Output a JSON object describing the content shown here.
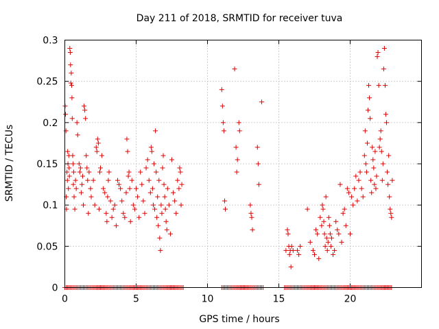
{
  "chart_data": {
    "type": "scatter",
    "title": "Day 211 of 2018, SRMTID for receiver tuva",
    "xlabel": "GPS time / hours",
    "ylabel": "SRMTID / TECUs",
    "xlim": [
      0,
      25
    ],
    "ylim": [
      0,
      0.3
    ],
    "xticks": [
      0,
      5,
      10,
      15,
      20
    ],
    "yticks": [
      0,
      0.05,
      0.1,
      0.15,
      0.2,
      0.25,
      0.3
    ],
    "grid": true,
    "legend": "none",
    "marker": "plus",
    "color": "#dd0000",
    "series": [
      {
        "values": [
          [
            0.02,
            0.22
          ],
          [
            0.05,
            0.21
          ],
          [
            0.08,
            0.19
          ],
          [
            0.1,
            0.11
          ],
          [
            0.12,
            0.095
          ],
          [
            0.15,
            0.14
          ],
          [
            0.18,
            0.13
          ],
          [
            0.2,
            0.165
          ],
          [
            0.22,
            0.15
          ],
          [
            0.25,
            0.12
          ],
          [
            0.28,
            0.16
          ],
          [
            0.3,
            0.145
          ],
          [
            0.32,
            0.135
          ],
          [
            0.35,
            0.29
          ],
          [
            0.38,
            0.285
          ],
          [
            0.4,
            0.27
          ],
          [
            0.42,
            0.248
          ],
          [
            0.45,
            0.26
          ],
          [
            0.48,
            0.245
          ],
          [
            0.5,
            0.23
          ],
          [
            0.52,
            0.205
          ],
          [
            0.55,
            0.16
          ],
          [
            0.58,
            0.15
          ],
          [
            0.6,
            0.125
          ],
          [
            0.62,
            0.14
          ],
          [
            0.65,
            0.11
          ],
          [
            0.7,
            0.095
          ],
          [
            0.75,
            0.13
          ],
          [
            0.8,
            0.12
          ],
          [
            0.85,
            0.2
          ],
          [
            0.9,
            0.185
          ],
          [
            1.0,
            0.15
          ],
          [
            1.05,
            0.14
          ],
          [
            1.1,
            0.145
          ],
          [
            1.15,
            0.115
          ],
          [
            1.2,
            0.125
          ],
          [
            1.25,
            0.135
          ],
          [
            1.3,
            0.1
          ],
          [
            1.35,
            0.22
          ],
          [
            1.4,
            0.215
          ],
          [
            1.45,
            0.205
          ],
          [
            1.5,
            0.16
          ],
          [
            1.55,
            0.145
          ],
          [
            1.6,
            0.13
          ],
          [
            1.65,
            0.09
          ],
          [
            1.7,
            0.14
          ],
          [
            1.8,
            0.12
          ],
          [
            1.85,
            0.11
          ],
          [
            2.0,
            0.13
          ],
          [
            2.1,
            0.1
          ],
          [
            2.2,
            0.17
          ],
          [
            2.25,
            0.165
          ],
          [
            2.3,
            0.18
          ],
          [
            2.35,
            0.175
          ],
          [
            2.4,
            0.095
          ],
          [
            2.45,
            0.14
          ],
          [
            2.5,
            0.145
          ],
          [
            2.6,
            0.16
          ],
          [
            2.7,
            0.12
          ],
          [
            2.8,
            0.115
          ],
          [
            2.9,
            0.09
          ],
          [
            2.95,
            0.08
          ],
          [
            3.0,
            0.11
          ],
          [
            3.05,
            0.13
          ],
          [
            3.1,
            0.14
          ],
          [
            3.2,
            0.105
          ],
          [
            3.3,
            0.085
          ],
          [
            3.4,
            0.095
          ],
          [
            3.5,
            0.1
          ],
          [
            3.6,
            0.075
          ],
          [
            3.7,
            0.13
          ],
          [
            3.8,
            0.125
          ],
          [
            3.9,
            0.12
          ],
          [
            4.0,
            0.105
          ],
          [
            4.1,
            0.09
          ],
          [
            4.2,
            0.085
          ],
          [
            4.3,
            0.115
          ],
          [
            4.35,
            0.18
          ],
          [
            4.4,
            0.165
          ],
          [
            4.45,
            0.135
          ],
          [
            4.5,
            0.14
          ],
          [
            4.55,
            0.12
          ],
          [
            4.6,
            0.08
          ],
          [
            4.7,
            0.13
          ],
          [
            4.8,
            0.1
          ],
          [
            4.9,
            0.095
          ],
          [
            5.0,
            0.12
          ],
          [
            5.1,
            0.11
          ],
          [
            5.2,
            0.085
          ],
          [
            5.3,
            0.14
          ],
          [
            5.4,
            0.125
          ],
          [
            5.5,
            0.105
          ],
          [
            5.6,
            0.09
          ],
          [
            5.7,
            0.145
          ],
          [
            5.8,
            0.155
          ],
          [
            5.9,
            0.13
          ],
          [
            6.0,
            0.115
          ],
          [
            6.05,
            0.17
          ],
          [
            6.1,
            0.165
          ],
          [
            6.15,
            0.12
          ],
          [
            6.2,
            0.1
          ],
          [
            6.25,
            0.15
          ],
          [
            6.3,
            0.095
          ],
          [
            6.35,
            0.19
          ],
          [
            6.4,
            0.14
          ],
          [
            6.45,
            0.085
          ],
          [
            6.5,
            0.11
          ],
          [
            6.55,
            0.075
          ],
          [
            6.6,
            0.13
          ],
          [
            6.65,
            0.06
          ],
          [
            6.7,
            0.045
          ],
          [
            6.75,
            0.1
          ],
          [
            6.8,
            0.09
          ],
          [
            6.85,
            0.145
          ],
          [
            6.9,
            0.16
          ],
          [
            6.95,
            0.125
          ],
          [
            7.0,
            0.11
          ],
          [
            7.05,
            0.095
          ],
          [
            7.1,
            0.08
          ],
          [
            7.15,
            0.07
          ],
          [
            7.2,
            0.12
          ],
          [
            7.3,
            0.1
          ],
          [
            7.4,
            0.065
          ],
          [
            7.5,
            0.155
          ],
          [
            7.6,
            0.115
          ],
          [
            7.7,
            0.105
          ],
          [
            7.8,
            0.09
          ],
          [
            7.9,
            0.13
          ],
          [
            8.0,
            0.12
          ],
          [
            8.05,
            0.145
          ],
          [
            8.1,
            0.14
          ],
          [
            8.15,
            0.1
          ],
          [
            8.2,
            0.125
          ],
          [
            11.0,
            0.24
          ],
          [
            11.05,
            0.22
          ],
          [
            11.1,
            0.2
          ],
          [
            11.15,
            0.19
          ],
          [
            11.2,
            0.105
          ],
          [
            11.25,
            0.095
          ],
          [
            11.9,
            0.265
          ],
          [
            12.0,
            0.17
          ],
          [
            12.05,
            0.14
          ],
          [
            12.1,
            0.155
          ],
          [
            12.2,
            0.2
          ],
          [
            12.25,
            0.19
          ],
          [
            13.0,
            0.1
          ],
          [
            13.05,
            0.09
          ],
          [
            13.1,
            0.085
          ],
          [
            13.15,
            0.07
          ],
          [
            13.5,
            0.17
          ],
          [
            13.55,
            0.15
          ],
          [
            13.6,
            0.125
          ],
          [
            13.8,
            0.225
          ],
          [
            15.5,
            0.045
          ],
          [
            15.6,
            0.07
          ],
          [
            15.65,
            0.065
          ],
          [
            15.7,
            0.05
          ],
          [
            15.75,
            0.04
          ],
          [
            15.8,
            0.045
          ],
          [
            15.85,
            0.025
          ],
          [
            15.9,
            0.05
          ],
          [
            16.0,
            0.045
          ],
          [
            16.3,
            0.045
          ],
          [
            16.4,
            0.04
          ],
          [
            16.5,
            0.05
          ],
          [
            17.0,
            0.095
          ],
          [
            17.2,
            0.055
          ],
          [
            17.4,
            0.045
          ],
          [
            17.5,
            0.04
          ],
          [
            17.6,
            0.07
          ],
          [
            17.7,
            0.065
          ],
          [
            17.8,
            0.035
          ],
          [
            17.9,
            0.085
          ],
          [
            18.0,
            0.075
          ],
          [
            18.05,
            0.1
          ],
          [
            18.1,
            0.095
          ],
          [
            18.15,
            0.08
          ],
          [
            18.2,
            0.065
          ],
          [
            18.25,
            0.05
          ],
          [
            18.3,
            0.11
          ],
          [
            18.35,
            0.06
          ],
          [
            18.4,
            0.045
          ],
          [
            18.45,
            0.055
          ],
          [
            18.5,
            0.085
          ],
          [
            18.55,
            0.075
          ],
          [
            18.6,
            0.065
          ],
          [
            18.65,
            0.05
          ],
          [
            18.7,
            0.06
          ],
          [
            18.8,
            0.04
          ],
          [
            18.9,
            0.045
          ],
          [
            19.0,
            0.08
          ],
          [
            19.1,
            0.07
          ],
          [
            19.2,
            0.065
          ],
          [
            19.3,
            0.125
          ],
          [
            19.4,
            0.055
          ],
          [
            19.5,
            0.09
          ],
          [
            19.6,
            0.095
          ],
          [
            19.7,
            0.075
          ],
          [
            19.8,
            0.12
          ],
          [
            19.9,
            0.115
          ],
          [
            20.0,
            0.065
          ],
          [
            20.1,
            0.11
          ],
          [
            20.2,
            0.1
          ],
          [
            20.3,
            0.12
          ],
          [
            20.4,
            0.135
          ],
          [
            20.5,
            0.105
          ],
          [
            20.6,
            0.13
          ],
          [
            20.7,
            0.14
          ],
          [
            20.8,
            0.12
          ],
          [
            20.9,
            0.11
          ],
          [
            21.0,
            0.16
          ],
          [
            21.05,
            0.19
          ],
          [
            21.1,
            0.15
          ],
          [
            21.15,
            0.14
          ],
          [
            21.2,
            0.175
          ],
          [
            21.25,
            0.215
          ],
          [
            21.3,
            0.245
          ],
          [
            21.35,
            0.23
          ],
          [
            21.4,
            0.205
          ],
          [
            21.45,
            0.13
          ],
          [
            21.5,
            0.115
          ],
          [
            21.55,
            0.17
          ],
          [
            21.6,
            0.155
          ],
          [
            21.65,
            0.145
          ],
          [
            21.7,
            0.125
          ],
          [
            21.75,
            0.165
          ],
          [
            21.8,
            0.12
          ],
          [
            21.85,
            0.135
          ],
          [
            21.9,
            0.28
          ],
          [
            21.95,
            0.285
          ],
          [
            22.0,
            0.245
          ],
          [
            22.05,
            0.17
          ],
          [
            22.1,
            0.18
          ],
          [
            22.15,
            0.19
          ],
          [
            22.2,
            0.165
          ],
          [
            22.25,
            0.13
          ],
          [
            22.3,
            0.15
          ],
          [
            22.35,
            0.265
          ],
          [
            22.4,
            0.29
          ],
          [
            22.45,
            0.245
          ],
          [
            22.5,
            0.21
          ],
          [
            22.55,
            0.2
          ],
          [
            22.6,
            0.14
          ],
          [
            22.65,
            0.125
          ],
          [
            22.7,
            0.16
          ],
          [
            22.75,
            0.11
          ],
          [
            22.8,
            0.095
          ],
          [
            22.85,
            0.09
          ],
          [
            22.9,
            0.085
          ],
          [
            22.95,
            0.13
          ]
        ]
      },
      {
        "zero_band": {
          "x_start": 0.0,
          "x_end": 22.9,
          "step": 0.1,
          "gaps": [
            [
              8.3,
              11.0
            ],
            [
              13.9,
              15.4
            ]
          ]
        }
      }
    ]
  }
}
